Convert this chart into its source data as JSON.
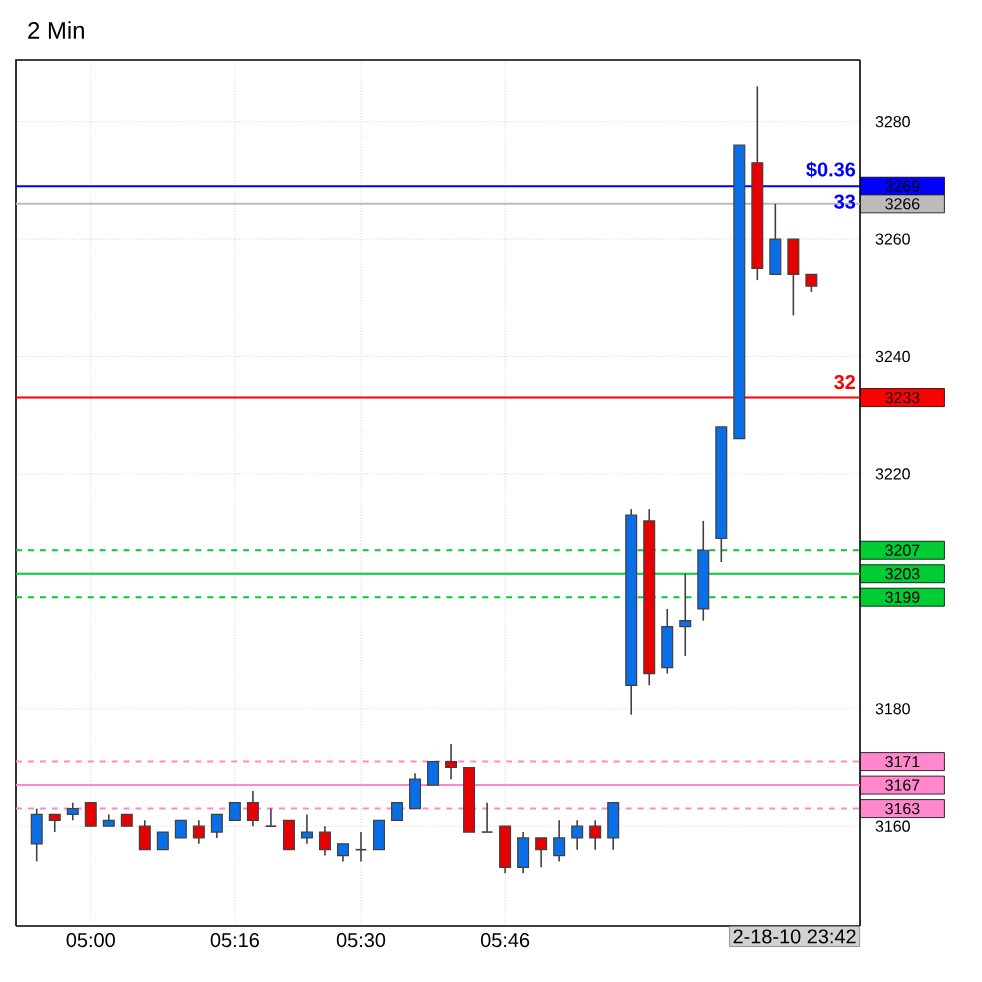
{
  "chart_data": {
    "type": "candlestick",
    "title": "2 Min",
    "categories": [
      null,
      null,
      null,
      "05:00",
      null,
      null,
      null,
      null,
      null,
      null,
      null,
      "05:16",
      null,
      null,
      null,
      null,
      null,
      null,
      "05:30",
      null,
      null,
      null,
      null,
      null,
      null,
      null,
      "05:46",
      null,
      null,
      null,
      null,
      null,
      null,
      null,
      null,
      null,
      null,
      null,
      null,
      null,
      null,
      null,
      null,
      null
    ],
    "ohlc": [
      [
        3157,
        3163,
        3154,
        3162
      ],
      [
        3162,
        3162,
        3159,
        3161
      ],
      [
        3162,
        3164,
        3161,
        3163
      ],
      [
        3164,
        3164,
        3160,
        3160
      ],
      [
        3160,
        3162,
        3160,
        3161
      ],
      [
        3162,
        3162,
        3160,
        3160
      ],
      [
        3160,
        3161,
        3156,
        3156
      ],
      [
        3156,
        3159,
        3156,
        3159
      ],
      [
        3158,
        3161,
        3158,
        3161
      ],
      [
        3160,
        3161,
        3157,
        3158
      ],
      [
        3159,
        3162,
        3158,
        3162
      ],
      [
        3161,
        3164,
        3161,
        3164
      ],
      [
        3164,
        3166,
        3160,
        3161
      ],
      [
        3160,
        3163,
        3160,
        3160
      ],
      [
        3161,
        3161,
        3156,
        3156
      ],
      [
        3158,
        3162,
        3157,
        3159
      ],
      [
        3159,
        3160,
        3155,
        3156
      ],
      [
        3155,
        3157,
        3154,
        3157
      ],
      [
        3156,
        3159,
        3154,
        3156
      ],
      [
        3156,
        3161,
        3156,
        3161
      ],
      [
        3161,
        3164,
        3161,
        3164
      ],
      [
        3163,
        3169,
        3163,
        3168
      ],
      [
        3167,
        3171,
        3167,
        3171
      ],
      [
        3171,
        3174,
        3168,
        3170
      ],
      [
        3170,
        3170,
        3159,
        3159
      ],
      [
        3159,
        3164,
        3159,
        3159
      ],
      [
        3160,
        3160,
        3152,
        3153
      ],
      [
        3153,
        3159,
        3152,
        3158
      ],
      [
        3158,
        3158,
        3153,
        3156
      ],
      [
        3155,
        3161,
        3154,
        3158
      ],
      [
        3158,
        3161,
        3156,
        3160
      ],
      [
        3160,
        3161,
        3156,
        3158
      ],
      [
        3158,
        3164,
        3156,
        3164
      ],
      [
        3184,
        3214,
        3179,
        3213
      ],
      [
        3212,
        3214,
        3184,
        3186
      ],
      [
        3187,
        3197,
        3186,
        3194
      ],
      [
        3194,
        3203,
        3189,
        3195
      ],
      [
        3197,
        3212,
        3195,
        3207
      ],
      [
        3209,
        3228,
        3205,
        3228
      ],
      [
        3226,
        3276,
        3226,
        3276
      ],
      [
        3273,
        3286,
        3253,
        3255
      ],
      [
        3254,
        3266,
        3254,
        3260
      ],
      [
        3260,
        3260,
        3247,
        3254
      ],
      [
        3254,
        3254,
        3251,
        3252
      ]
    ],
    "colors": [
      "#0a6ee6",
      "#e60000",
      "#0a6ee6",
      "#e60000",
      "#0a6ee6",
      "#e60000",
      "#e60000",
      "#0a6ee6",
      "#0a6ee6",
      "#e60000",
      "#0a6ee6",
      "#0a6ee6",
      "#e60000",
      "#404040",
      "#e60000",
      "#0a6ee6",
      "#e60000",
      "#0a6ee6",
      "#404040",
      "#0a6ee6",
      "#0a6ee6",
      "#0a6ee6",
      "#0a6ee6",
      "#e60000",
      "#e60000",
      "#404040",
      "#e60000",
      "#0a6ee6",
      "#e60000",
      "#0a6ee6",
      "#0a6ee6",
      "#e60000",
      "#0a6ee6",
      "#0a6ee6",
      "#e60000",
      "#0a6ee6",
      "#0a6ee6",
      "#0a6ee6",
      "#0a6ee6",
      "#0a6ee6",
      "#e60000",
      "#0a6ee6",
      "#e60000",
      "#e60000"
    ],
    "ylim": [
      3143,
      3290.5
    ],
    "yticks": [
      3160,
      3180,
      3220,
      3240,
      3260,
      3280
    ],
    "grid": true,
    "ref_lines": [
      {
        "axis": "y",
        "value": 3269,
        "label": "3269",
        "color": "#0000ff",
        "line_style": "solid"
      },
      {
        "axis": "y",
        "value": 3266,
        "label": "3266",
        "color": "#bbbbbb",
        "line_style": "solid"
      },
      {
        "axis": "y",
        "value": 3233,
        "label": "3233",
        "color": "#ff0000",
        "line_style": "solid"
      },
      {
        "axis": "y",
        "value": 3207,
        "label": "3207",
        "color": "#00cc33",
        "line_style": "dashed"
      },
      {
        "axis": "y",
        "value": 3203,
        "label": "3203",
        "color": "#00cc33",
        "line_style": "solid"
      },
      {
        "axis": "y",
        "value": 3199,
        "label": "3199",
        "color": "#00cc33",
        "line_style": "dashed"
      },
      {
        "axis": "y",
        "value": 3171,
        "label": "3171",
        "color": "#ff88cc",
        "line_style": "dashed"
      },
      {
        "axis": "y",
        "value": 3167,
        "label": "3167",
        "color": "#ff88cc",
        "line_style": "solid"
      },
      {
        "axis": "y",
        "value": 3163,
        "label": "3163",
        "color": "#ff88cc",
        "line_style": "dashed"
      }
    ],
    "annotations": [
      "$0.36",
      "33",
      "32",
      "2-18-10 23:42"
    ]
  }
}
